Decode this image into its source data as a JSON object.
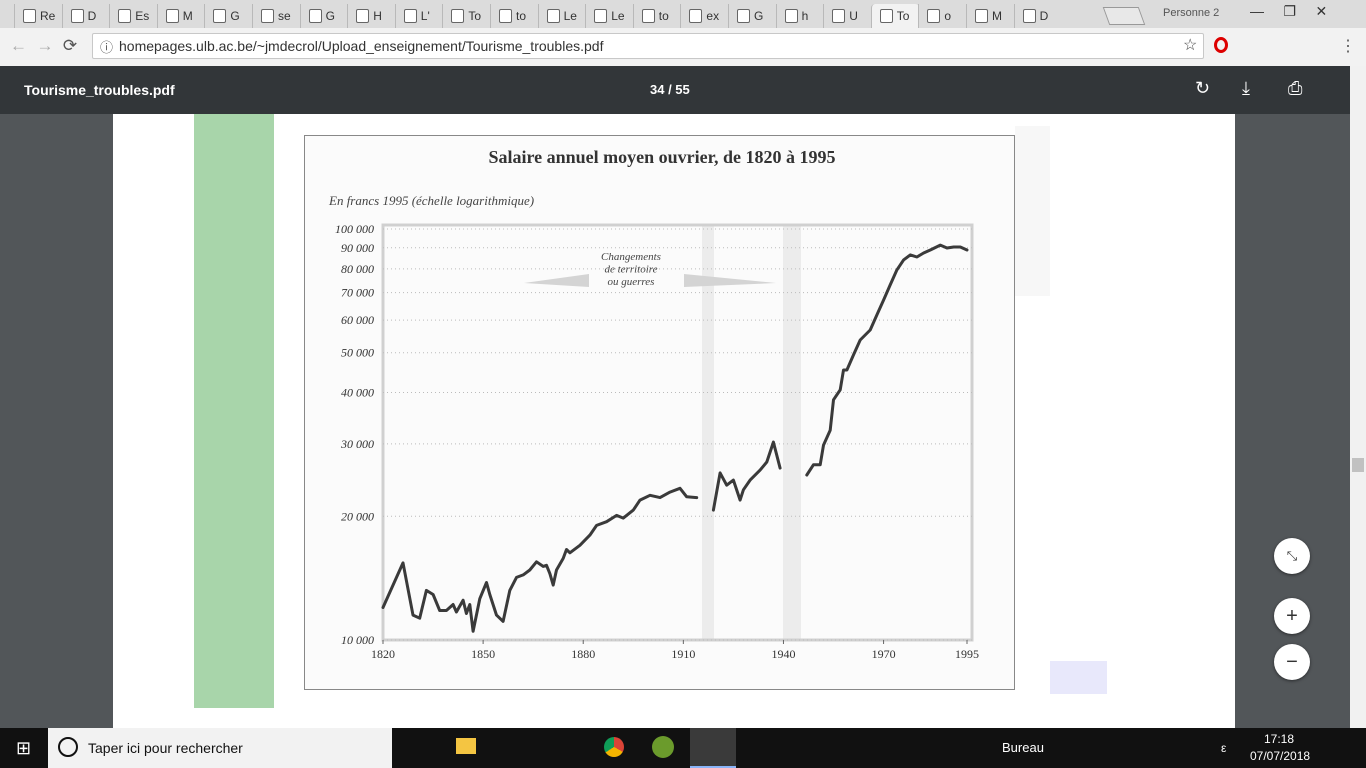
{
  "browser": {
    "tabs": [
      "Re",
      "D",
      "Es",
      "M",
      "G",
      "se",
      "G",
      "H",
      "L'",
      "To",
      "to",
      "Le",
      "Le",
      "to",
      "ex",
      "G",
      "h",
      "U",
      "To",
      "o",
      "M",
      "D"
    ],
    "profile": "Personne 2",
    "url": "homepages.ulb.ac.be/~jmdecrol/Upload_enseignement/Tourisme_troubles.pdf"
  },
  "pdf_viewer": {
    "filename": "Tourisme_troubles.pdf",
    "page": "34 / 55"
  },
  "taskbar": {
    "search": "Taper ici pour rechercher",
    "toolbar": "Bureau",
    "lang": "ε",
    "time": "17:18",
    "date": "07/07/2018"
  },
  "chart_data": {
    "type": "line",
    "title": "Salaire annuel moyen ouvrier, de 1820 à 1995",
    "subtitle": "En francs 1995 (échelle logarithmique)",
    "annotation": [
      "Changements",
      "de territoire",
      "ou guerres"
    ],
    "color": "#3a3a3a",
    "y_scale": "log",
    "grid": true,
    "x": [
      1820,
      1826,
      1829,
      1831,
      1833,
      1835,
      1837,
      1839,
      1841,
      1842,
      1844,
      1845,
      1846,
      1847,
      1849,
      1851,
      1852,
      1854,
      1856,
      1858,
      1860,
      1862,
      1864,
      1866,
      1868,
      1869,
      1870,
      1871,
      1872,
      1874,
      1875,
      1876,
      1879,
      1882,
      1884,
      1887,
      1890,
      1892,
      1895,
      1897,
      1900,
      1903,
      1906,
      1909,
      1911,
      1914,
      1916,
      1919,
      1921,
      1923,
      1925,
      1927,
      1928,
      1930,
      1933,
      1935,
      1937,
      1939,
      1942,
      1947,
      1949,
      1951,
      1952,
      1954,
      1955,
      1957,
      1958,
      1959,
      1961,
      1963,
      1966,
      1968,
      1970,
      1972,
      1974,
      1976,
      1978,
      1980,
      1982,
      1984,
      1987,
      1989,
      1991,
      1993,
      1995
    ],
    "values": [
      12000,
      15400,
      11500,
      11300,
      13200,
      12900,
      11800,
      11800,
      12200,
      11700,
      12500,
      11600,
      12200,
      10500,
      12600,
      13800,
      12900,
      11500,
      11100,
      13200,
      14200,
      14400,
      14800,
      15500,
      15100,
      15200,
      14500,
      13600,
      14800,
      15800,
      16600,
      16300,
      17000,
      18000,
      19000,
      19400,
      20100,
      19800,
      20700,
      21900,
      22500,
      22200,
      22900,
      23400,
      22300,
      22200,
      null,
      20700,
      25500,
      23800,
      24500,
      21900,
      23200,
      24500,
      25900,
      27100,
      30300,
      26200,
      null,
      25200,
      26700,
      26700,
      29800,
      32400,
      38400,
      40600,
      45400,
      45400,
      49400,
      53700,
      56800,
      61800,
      67200,
      73100,
      79500,
      84100,
      86500,
      85500,
      87400,
      88900,
      91400,
      89900,
      90400,
      90400,
      88900
    ],
    "xlim": [
      1820,
      1995
    ],
    "xticks": [
      1820,
      1850,
      1880,
      1910,
      1940,
      1970,
      1995
    ],
    "ylim": [
      10000,
      100000
    ],
    "yticks": [
      {
        "value": 10000,
        "label": "10 000"
      },
      {
        "value": 20000,
        "label": "20 000"
      },
      {
        "value": 30000,
        "label": "30 000"
      },
      {
        "value": 40000,
        "label": "40 000"
      },
      {
        "value": 50000,
        "label": "50 000"
      },
      {
        "value": 60000,
        "label": "60 000"
      },
      {
        "value": 70000,
        "label": "70 000"
      },
      {
        "value": 80000,
        "label": "80 000"
      },
      {
        "value": 90000,
        "label": "90 000"
      },
      {
        "value": 100000,
        "label": "100 000"
      }
    ]
  }
}
